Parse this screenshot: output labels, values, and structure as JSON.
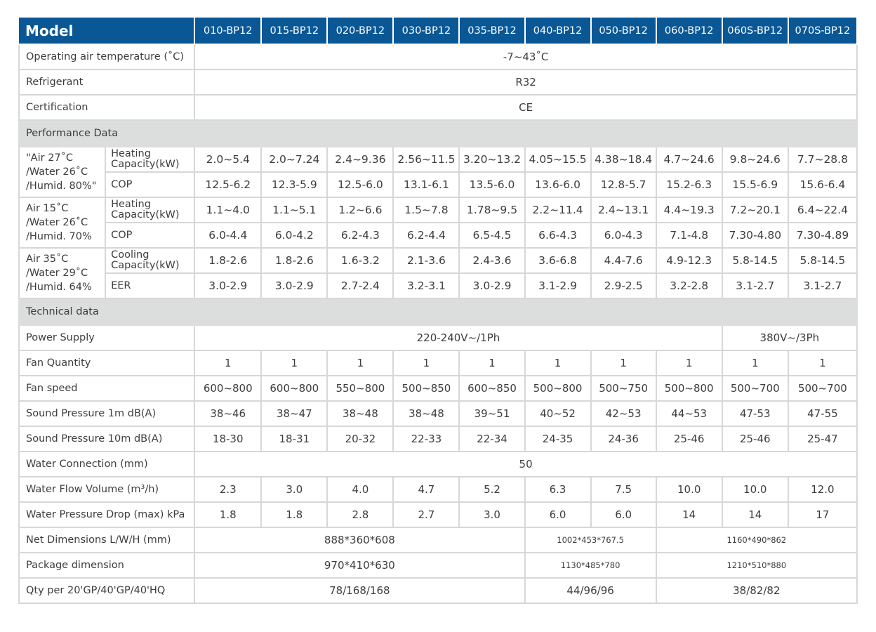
{
  "colors": {
    "header_bg": "#0a5796",
    "section_bg": "#dcdddd",
    "border": "#d6d7d8",
    "text": "#3d3d3d"
  },
  "table": {
    "header_label": "Model",
    "models": [
      "010-BP12",
      "015-BP12",
      "020-BP12",
      "030-BP12",
      "035-BP12",
      "040-BP12",
      "050-BP12",
      "060-BP12",
      "060S-BP12",
      "070S-BP12"
    ],
    "general": [
      {
        "label": "Operating air temperature (˚C)",
        "cells": [
          {
            "text": "-7~43˚C",
            "span": 10
          }
        ]
      },
      {
        "label": "Refrigerant",
        "cells": [
          {
            "text": "R32",
            "span": 10
          }
        ]
      },
      {
        "label": "Certification",
        "cells": [
          {
            "text": "CE",
            "span": 10
          }
        ]
      }
    ],
    "performance_title": "Performance Data",
    "performance": [
      {
        "condition": "\"Air 27˚C\n/Water 26˚C\n/Humid. 80%\"",
        "metrics": [
          {
            "label": "Heating Capacity(kW)",
            "values": [
              "2.0~5.4",
              "2.0~7.24",
              "2.4~9.36",
              "2.56~11.5",
              "3.20~13.2",
              "4.05~15.5",
              "4.38~18.4",
              "4.7~24.6",
              "9.8~24.6",
              "7.7~28.8"
            ]
          },
          {
            "label": "COP",
            "values": [
              "12.5-6.2",
              "12.3-5.9",
              "12.5-6.0",
              "13.1-6.1",
              "13.5-6.0",
              "13.6-6.0",
              "12.8-5.7",
              "15.2-6.3",
              "15.5-6.9",
              "15.6-6.4"
            ]
          }
        ]
      },
      {
        "condition": "Air 15˚C\n/Water 26˚C\n/Humid. 70%",
        "metrics": [
          {
            "label": "Heating Capacity(kW)",
            "values": [
              "1.1~4.0",
              "1.1~5.1",
              "1.2~6.6",
              "1.5~7.8",
              "1.78~9.5",
              "2.2~11.4",
              "2.4~13.1",
              "4.4~19.3",
              "7.2~20.1",
              "6.4~22.4"
            ]
          },
          {
            "label": "COP",
            "values": [
              "6.0-4.4",
              "6.0-4.2",
              "6.2-4.3",
              "6.2-4.4",
              "6.5-4.5",
              "6.6-4.3",
              "6.0-4.3",
              "7.1-4.8",
              "7.30-4.80",
              "7.30-4.89"
            ]
          }
        ]
      },
      {
        "condition": "Air 35˚C\n/Water 29˚C\n/Humid. 64%",
        "metrics": [
          {
            "label": "Cooling Capacity(kW)",
            "values": [
              "1.8-2.6",
              "1.8-2.6",
              "1.6-3.2",
              "2.1-3.6",
              "2.4-3.6",
              "3.6-6.8",
              "4.4-7.6",
              "4.9-12.3",
              "5.8-14.5",
              "5.8-14.5"
            ]
          },
          {
            "label": "EER",
            "values": [
              "3.0-2.9",
              "3.0-2.9",
              "2.7-2.4",
              "3.2-3.1",
              "3.0-2.9",
              "3.1-2.9",
              "2.9-2.5",
              "3.2-2.8",
              "3.1-2.7",
              "3.1-2.7"
            ]
          }
        ]
      }
    ],
    "technical_title": "Technical data",
    "technical": [
      {
        "label": "Power Supply",
        "cells": [
          {
            "text": "220-240V~/1Ph",
            "span": 8
          },
          {
            "text": "380V~/3Ph",
            "span": 2
          }
        ]
      },
      {
        "label": "Fan Quantity",
        "cells": [
          {
            "text": "1"
          },
          {
            "text": "1"
          },
          {
            "text": "1"
          },
          {
            "text": "1"
          },
          {
            "text": "1"
          },
          {
            "text": "1"
          },
          {
            "text": "1"
          },
          {
            "text": "1"
          },
          {
            "text": "1"
          },
          {
            "text": "1"
          }
        ]
      },
      {
        "label": "Fan speed",
        "cells": [
          {
            "text": "600~800"
          },
          {
            "text": "600~800"
          },
          {
            "text": "550~800"
          },
          {
            "text": "500~850"
          },
          {
            "text": "600~850"
          },
          {
            "text": "500~800"
          },
          {
            "text": "500~750"
          },
          {
            "text": "500~800"
          },
          {
            "text": "500~700"
          },
          {
            "text": "500~700"
          }
        ]
      },
      {
        "label": "Sound Pressure 1m dB(A)",
        "cells": [
          {
            "text": "38~46"
          },
          {
            "text": "38~47"
          },
          {
            "text": "38~48"
          },
          {
            "text": "38~48"
          },
          {
            "text": "39~51"
          },
          {
            "text": "40~52"
          },
          {
            "text": "42~53"
          },
          {
            "text": "44~53"
          },
          {
            "text": "47-53"
          },
          {
            "text": "47-55"
          }
        ]
      },
      {
        "label": "Sound Pressure 10m dB(A)",
        "cells": [
          {
            "text": "18-30"
          },
          {
            "text": "18-31"
          },
          {
            "text": "20-32"
          },
          {
            "text": "22-33"
          },
          {
            "text": "22-34"
          },
          {
            "text": "24-35"
          },
          {
            "text": "24-36"
          },
          {
            "text": "25-46"
          },
          {
            "text": "25-46"
          },
          {
            "text": "25-47"
          }
        ]
      },
      {
        "label": "Water Connection (mm)",
        "cells": [
          {
            "text": "50",
            "span": 10
          }
        ]
      },
      {
        "label": "Water Flow Volume (m³/h)",
        "cells": [
          {
            "text": "2.3"
          },
          {
            "text": "3.0"
          },
          {
            "text": "4.0"
          },
          {
            "text": "4.7"
          },
          {
            "text": "5.2"
          },
          {
            "text": "6.3"
          },
          {
            "text": "7.5"
          },
          {
            "text": "10.0"
          },
          {
            "text": "10.0"
          },
          {
            "text": "12.0"
          }
        ]
      },
      {
        "label": "Water Pressure Drop (max) kPa",
        "cells": [
          {
            "text": "1.8"
          },
          {
            "text": "1.8"
          },
          {
            "text": "2.8"
          },
          {
            "text": "2.7"
          },
          {
            "text": "3.0"
          },
          {
            "text": "6.0"
          },
          {
            "text": "6.0"
          },
          {
            "text": "14"
          },
          {
            "text": "14"
          },
          {
            "text": "17"
          }
        ]
      },
      {
        "label": "Net Dimensions L/W/H (mm)",
        "cells": [
          {
            "text": "888*360*608",
            "span": 5
          },
          {
            "text": "1002*453*767.5",
            "span": 2,
            "small": true
          },
          {
            "text": "1160*490*862",
            "span": 3,
            "small": true
          }
        ]
      },
      {
        "label": "Package dimension",
        "cells": [
          {
            "text": "970*410*630",
            "span": 5
          },
          {
            "text": "1130*485*780",
            "span": 2,
            "small": true
          },
          {
            "text": "1210*510*880",
            "span": 3,
            "small": true
          }
        ]
      },
      {
        "label": "Qty per 20'GP/40'GP/40'HQ",
        "cells": [
          {
            "text": "78/168/168",
            "span": 5
          },
          {
            "text": "44/96/96",
            "span": 2
          },
          {
            "text": "38/82/82",
            "span": 3
          }
        ]
      }
    ]
  }
}
